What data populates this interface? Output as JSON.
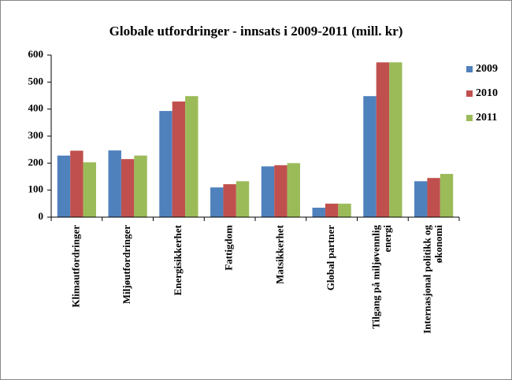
{
  "chart_data": {
    "type": "bar",
    "title": "Globale utfordringer  - innsats i 2009-2011 (mill. kr)",
    "categories": [
      "Klimautfordringer",
      "Miljøutfordringer",
      "Energisikkerhet",
      "Fattigdom",
      "Matsikkerhet",
      "Global partner",
      "Tilgang på miljøvennlig energi",
      "Internasjonal politikk og økonomi"
    ],
    "series": [
      {
        "name": "2009",
        "color": "#4f81bd",
        "values": [
          228,
          247,
          393,
          110,
          188,
          35,
          448,
          133
        ]
      },
      {
        "name": "2010",
        "color": "#c0504d",
        "values": [
          246,
          215,
          428,
          122,
          192,
          50,
          573,
          145
        ]
      },
      {
        "name": "2011",
        "color": "#9bbb59",
        "values": [
          203,
          228,
          448,
          133,
          200,
          50,
          573,
          160
        ]
      }
    ],
    "ylim": [
      0,
      600
    ],
    "yticks": [
      0,
      100,
      200,
      300,
      400,
      500,
      600
    ],
    "legend": "right"
  }
}
